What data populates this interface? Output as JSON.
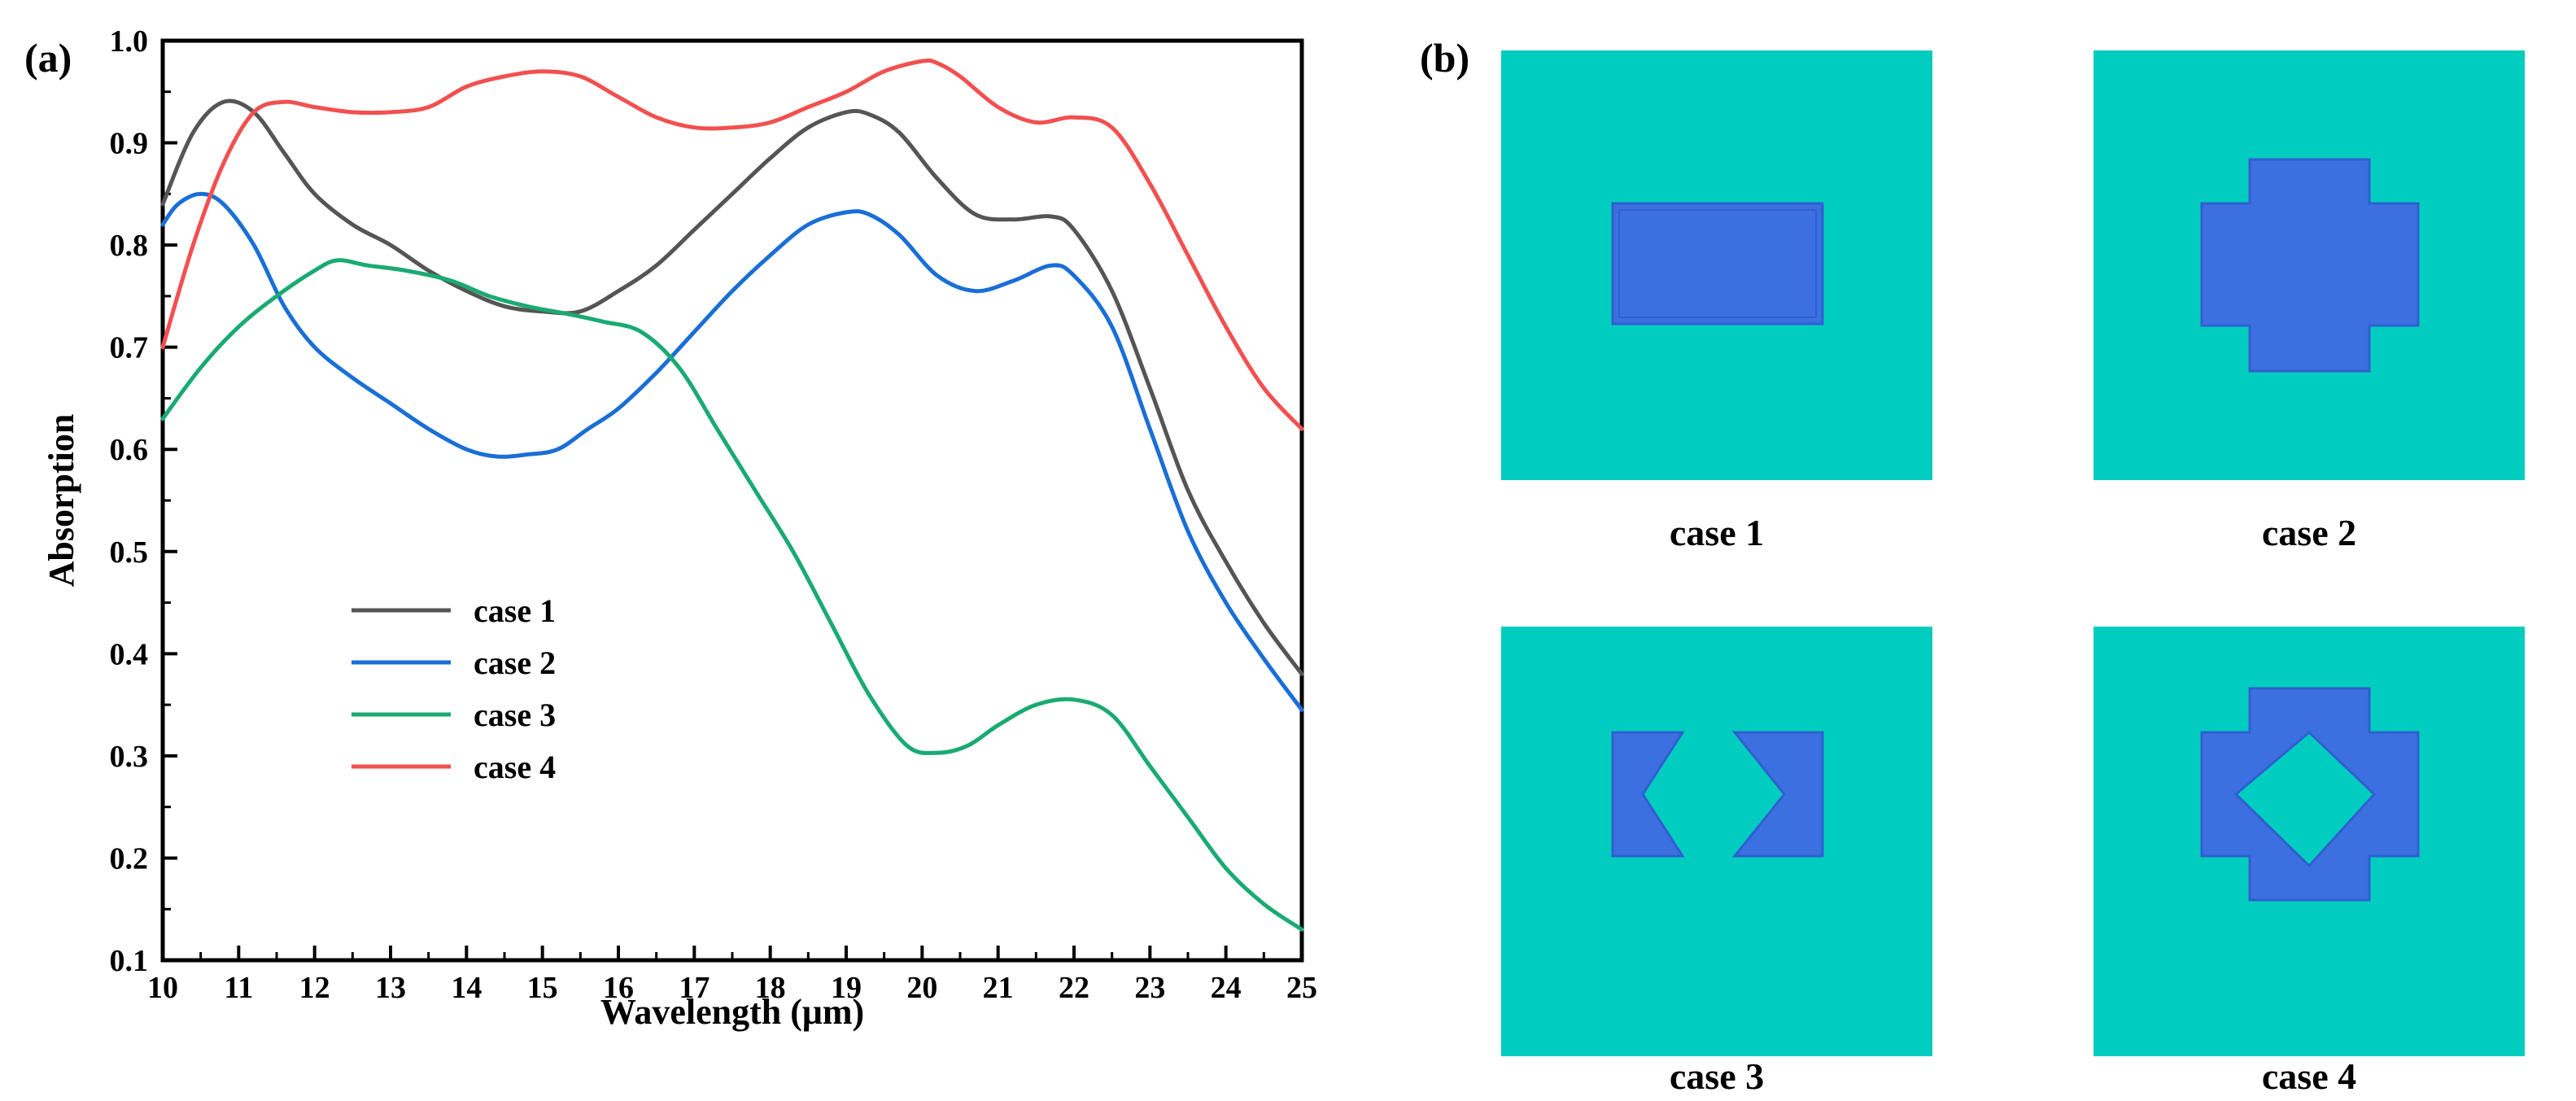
{
  "panel_a_label": "(a)",
  "panel_b_label": "(b)",
  "chart_data": {
    "type": "line",
    "title": "",
    "xlabel": "Wavelength (μm)",
    "ylabel": "Absorption",
    "xlim": [
      10,
      25
    ],
    "ylim": [
      0.1,
      1.0
    ],
    "xticks": [
      "10",
      "11",
      "12",
      "13",
      "14",
      "15",
      "16",
      "17",
      "18",
      "19",
      "20",
      "21",
      "22",
      "23",
      "24",
      "25"
    ],
    "yticks": [
      "0.1",
      "0.2",
      "0.3",
      "0.4",
      "0.5",
      "0.6",
      "0.7",
      "0.8",
      "0.9",
      "1.0"
    ],
    "legend_position": "center-left",
    "series": [
      {
        "name": "case 1",
        "color": "#555555",
        "x": [
          10,
          10.4,
          10.8,
          11.2,
          11.6,
          12,
          12.5,
          13,
          13.5,
          14,
          14.5,
          15,
          15.5,
          16,
          16.5,
          17,
          17.5,
          18,
          18.5,
          19,
          19.3,
          19.7,
          20.2,
          20.7,
          21.2,
          21.7,
          22,
          22.5,
          23,
          23.5,
          24,
          24.5,
          25
        ],
        "y": [
          0.84,
          0.91,
          0.94,
          0.93,
          0.89,
          0.85,
          0.82,
          0.8,
          0.775,
          0.755,
          0.74,
          0.735,
          0.735,
          0.755,
          0.78,
          0.815,
          0.85,
          0.885,
          0.915,
          0.93,
          0.928,
          0.91,
          0.865,
          0.83,
          0.825,
          0.828,
          0.815,
          0.755,
          0.66,
          0.56,
          0.49,
          0.43,
          0.38
        ]
      },
      {
        "name": "case 2",
        "color": "#1a6fd6",
        "x": [
          10,
          10.2,
          10.5,
          10.8,
          11.2,
          11.6,
          12,
          12.5,
          13,
          13.5,
          14,
          14.4,
          14.8,
          15.2,
          15.6,
          16,
          16.5,
          17,
          17.5,
          18,
          18.5,
          19,
          19.3,
          19.7,
          20.2,
          20.7,
          21.2,
          21.7,
          22,
          22.5,
          23,
          23.5,
          24,
          24.5,
          25
        ],
        "y": [
          0.82,
          0.84,
          0.85,
          0.84,
          0.8,
          0.74,
          0.7,
          0.67,
          0.645,
          0.62,
          0.6,
          0.593,
          0.595,
          0.6,
          0.62,
          0.64,
          0.675,
          0.715,
          0.755,
          0.79,
          0.82,
          0.832,
          0.83,
          0.81,
          0.77,
          0.755,
          0.765,
          0.78,
          0.77,
          0.72,
          0.62,
          0.52,
          0.45,
          0.395,
          0.345
        ]
      },
      {
        "name": "case 3",
        "color": "#1aaa73",
        "x": [
          10,
          10.5,
          11,
          11.5,
          12,
          12.3,
          12.7,
          13.2,
          13.8,
          14.3,
          14.8,
          15.3,
          15.8,
          16.3,
          16.8,
          17.3,
          17.8,
          18.3,
          18.8,
          19.3,
          19.8,
          20.2,
          20.6,
          21,
          21.5,
          22,
          22.5,
          23,
          23.5,
          24,
          24.5,
          25
        ],
        "y": [
          0.63,
          0.68,
          0.72,
          0.75,
          0.775,
          0.785,
          0.78,
          0.775,
          0.765,
          0.75,
          0.74,
          0.733,
          0.725,
          0.715,
          0.68,
          0.62,
          0.56,
          0.5,
          0.43,
          0.36,
          0.31,
          0.303,
          0.31,
          0.33,
          0.35,
          0.355,
          0.34,
          0.29,
          0.24,
          0.19,
          0.155,
          0.13
        ]
      },
      {
        "name": "case 4",
        "color": "#f25050",
        "x": [
          10,
          10.4,
          10.8,
          11.2,
          11.6,
          12,
          12.5,
          13,
          13.5,
          14,
          14.5,
          15,
          15.5,
          16,
          16.5,
          17,
          17.5,
          18,
          18.5,
          19,
          19.5,
          20,
          20.2,
          20.5,
          21,
          21.5,
          22,
          22.5,
          23,
          23.5,
          24,
          24.5,
          25
        ],
        "y": [
          0.7,
          0.8,
          0.88,
          0.93,
          0.94,
          0.935,
          0.93,
          0.93,
          0.935,
          0.955,
          0.965,
          0.97,
          0.965,
          0.945,
          0.925,
          0.915,
          0.915,
          0.92,
          0.935,
          0.95,
          0.97,
          0.98,
          0.978,
          0.965,
          0.935,
          0.92,
          0.925,
          0.915,
          0.86,
          0.79,
          0.72,
          0.66,
          0.62
        ]
      }
    ]
  },
  "panel_b": {
    "background_color": "#00cdbf",
    "structure_color": "#3c6fe0",
    "cases": [
      {
        "caption": "case 1",
        "shape": "rectangle"
      },
      {
        "caption": "case 2",
        "shape": "cross"
      },
      {
        "caption": "case 3",
        "shape": "split-rectangle-with-diamond-gap"
      },
      {
        "caption": "case 4",
        "shape": "cross-with-diamond-hole"
      }
    ]
  }
}
